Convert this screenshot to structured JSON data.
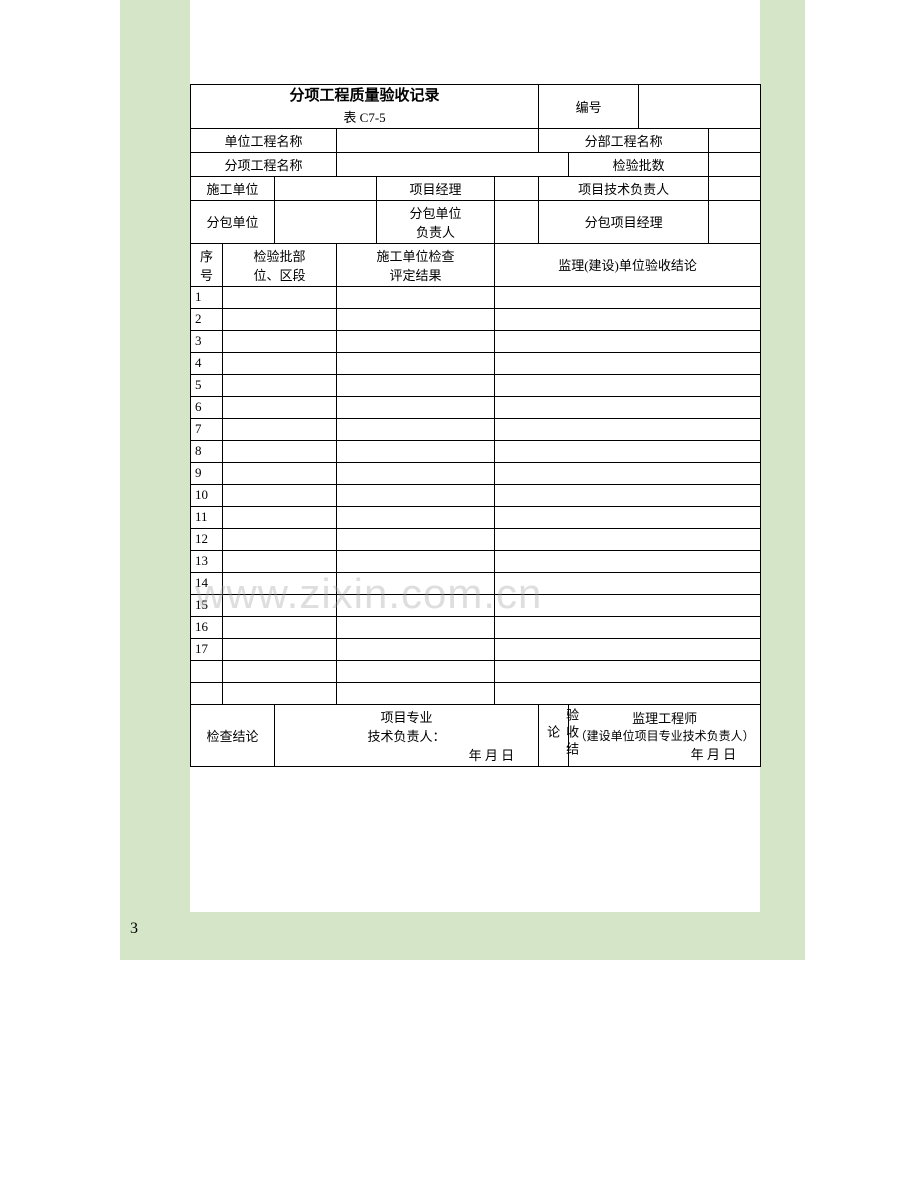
{
  "page": {
    "number": "3"
  },
  "colors": {
    "page_bg": "#ffffff",
    "panel_bg": "#d5e5c7",
    "border": "#000000",
    "text": "#000000",
    "watermark": "rgba(160,160,160,0.35)"
  },
  "title": {
    "main": "分项工程质量验收记录",
    "sub": "表 C7-5",
    "number_label": "编号",
    "number_value": ""
  },
  "header_rows": {
    "r1": {
      "unit_project_label": "单位工程名称",
      "unit_project_value": "",
      "sub_project_label": "分部工程名称",
      "sub_project_value": ""
    },
    "r2": {
      "item_project_label": "分项工程名称",
      "item_project_value": "",
      "batch_count_label": "检验批数",
      "batch_count_value": ""
    },
    "r3": {
      "contractor_label": "施工单位",
      "contractor_value": "",
      "pm_label": "项目经理",
      "pm_value": "",
      "tech_lead_label": "项目技术负责人",
      "tech_lead_value": ""
    },
    "r4": {
      "subcontractor_label": "分包单位",
      "subcontractor_value": "",
      "sub_lead_label": "分包单位负责人",
      "sub_lead_label_l1": "分包单位",
      "sub_lead_label_l2": "负责人",
      "sub_lead_value": "",
      "sub_pm_label": "分包项目经理",
      "sub_pm_value": ""
    }
  },
  "grid_header": {
    "seq": "序号",
    "seq_l1": "序",
    "seq_l2": "号",
    "batch_loc": "检验批部位、区段",
    "batch_loc_l1": "检验批部",
    "batch_loc_l2": "位、区段",
    "check_result": "施工单位检查评定结果",
    "check_result_l1": "施工单位检查",
    "check_result_l2": "评定结果",
    "supervision": "监理(建设)单位验收结论"
  },
  "grid_rows": [
    {
      "n": "1"
    },
    {
      "n": "2"
    },
    {
      "n": "3"
    },
    {
      "n": "4"
    },
    {
      "n": "5"
    },
    {
      "n": "6"
    },
    {
      "n": "7"
    },
    {
      "n": "8"
    },
    {
      "n": "9"
    },
    {
      "n": "10"
    },
    {
      "n": "11"
    },
    {
      "n": "12"
    },
    {
      "n": "13"
    },
    {
      "n": "14"
    },
    {
      "n": "15"
    },
    {
      "n": "16"
    },
    {
      "n": "17"
    },
    {
      "n": ""
    },
    {
      "n": ""
    }
  ],
  "conclusion": {
    "check_label": "检查结论",
    "check_sign_l1": "项目专业",
    "check_sign_l2": "技术负责人：",
    "check_date": "年  月  日",
    "accept_label": "验收结论",
    "accept_sign_l1": "监理工程师",
    "accept_sign_l2": "（建设单位项目专业技术负责人）",
    "accept_date": "年  月  日"
  },
  "watermark": "www.zixin.com.cn"
}
